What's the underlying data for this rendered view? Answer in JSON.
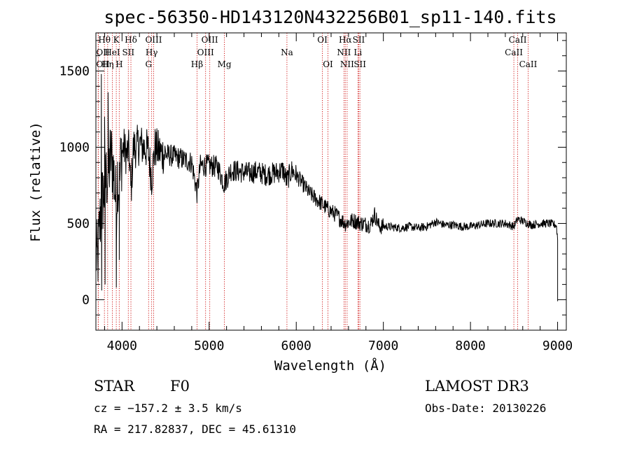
{
  "chart_data": {
    "type": "line",
    "title": "spec-56350-HD143120N432256B01_sp11-140.fits",
    "xlabel": "Wavelength (Å)",
    "ylabel": "Flux (relative)",
    "xlim": [
      3700,
      9100
    ],
    "ylim": [
      -200,
      1750
    ],
    "x_ticks": [
      4000,
      5000,
      6000,
      7000,
      8000,
      9000
    ],
    "y_ticks": [
      0,
      500,
      1000,
      1500
    ],
    "x_tick_labels": [
      "4000",
      "5000",
      "6000",
      "7000",
      "8000",
      "9000"
    ],
    "y_tick_labels": [
      "0",
      "500",
      "1000",
      "1500"
    ],
    "spectrum_anchors": {
      "x": [
        3700,
        3720,
        3740,
        3760,
        3790,
        3820,
        3850,
        3870,
        3890,
        3910,
        3934,
        3950,
        3968,
        3990,
        4020,
        4050,
        4080,
        4102,
        4130,
        4160,
        4200,
        4250,
        4300,
        4340,
        4380,
        4450,
        4520,
        4600,
        4700,
        4800,
        4861,
        4900,
        5000,
        5100,
        5172,
        5250,
        5350,
        5450,
        5550,
        5650,
        5750,
        5850,
        5890,
        5950,
        6050,
        6150,
        6250,
        6350,
        6450,
        6563,
        6650,
        6750,
        6850,
        6900,
        6950,
        7050,
        7200,
        7300,
        7400,
        7500,
        7600,
        7700,
        7800,
        7900,
        8000,
        8100,
        8200,
        8300,
        8400,
        8498,
        8542,
        8662,
        8700,
        8800,
        8900,
        8985,
        9000
      ],
      "y": [
        300,
        250,
        450,
        600,
        700,
        800,
        850,
        950,
        900,
        800,
        600,
        850,
        700,
        950,
        1000,
        950,
        980,
        700,
        1000,
        1000,
        1020,
        1000,
        980,
        800,
        1000,
        960,
        950,
        940,
        920,
        900,
        700,
        880,
        880,
        870,
        760,
        850,
        840,
        830,
        840,
        820,
        830,
        850,
        780,
        850,
        780,
        700,
        650,
        600,
        560,
        500,
        520,
        500,
        490,
        560,
        480,
        480,
        470,
        480,
        470,
        480,
        510,
        490,
        490,
        480,
        480,
        490,
        500,
        500,
        500,
        480,
        530,
        500,
        490,
        500,
        500,
        490,
        400
      ]
    },
    "spectral_lines": [
      {
        "label": "Hθ",
        "x": 3798,
        "row": 0
      },
      {
        "label": "K",
        "x": 3934,
        "row": 0
      },
      {
        "label": "Hδ",
        "x": 4102,
        "row": 0
      },
      {
        "label": "OIII",
        "x": 4363,
        "row": 0
      },
      {
        "label": "OIII",
        "x": 5007,
        "row": 0
      },
      {
        "label": "OI",
        "x": 6300,
        "row": 0
      },
      {
        "label": "Hα",
        "x": 6563,
        "row": 0
      },
      {
        "label": "SII",
        "x": 6717,
        "row": 0
      },
      {
        "label": "CaII",
        "x": 8542,
        "row": 0
      },
      {
        "label": "OII",
        "x": 3727,
        "row": 1
      },
      {
        "label": "HeI",
        "x": 3889,
        "row": 1
      },
      {
        "label": "SII",
        "x": 4072,
        "row": 1
      },
      {
        "label": "Hγ",
        "x": 4340,
        "row": 1
      },
      {
        "label": "OIII",
        "x": 4959,
        "row": 1
      },
      {
        "label": "Na",
        "x": 5893,
        "row": 1
      },
      {
        "label": "NII",
        "x": 6548,
        "row": 1
      },
      {
        "label": "Li",
        "x": 6708,
        "row": 1
      },
      {
        "label": "CaII",
        "x": 8498,
        "row": 1
      },
      {
        "label": "OII",
        "x": 3727,
        "row": 2
      },
      {
        "label": "Hη",
        "x": 3835,
        "row": 2
      },
      {
        "label": "H",
        "x": 3968,
        "row": 2
      },
      {
        "label": "G",
        "x": 4305,
        "row": 2
      },
      {
        "label": "Hβ",
        "x": 4861,
        "row": 2
      },
      {
        "label": "Mg",
        "x": 5175,
        "row": 2
      },
      {
        "label": "OI",
        "x": 6364,
        "row": 2
      },
      {
        "label": "NII",
        "x": 6584,
        "row": 2
      },
      {
        "label": "SII",
        "x": 6731,
        "row": 2
      },
      {
        "label": "CaII",
        "x": 8662,
        "row": 2
      }
    ],
    "colors": {
      "line_markers": "#cc0000",
      "spectrum": "#000000",
      "axes": "#000000"
    }
  },
  "info": {
    "object_class": "STAR",
    "subclass": "F0",
    "redshift": "cz = −157.2 ± 3.5 km/s",
    "coords": "RA = 217.82837, DEC =  45.61310",
    "survey": "LAMOST DR3",
    "obs_date": "Obs-Date: 20130226"
  }
}
